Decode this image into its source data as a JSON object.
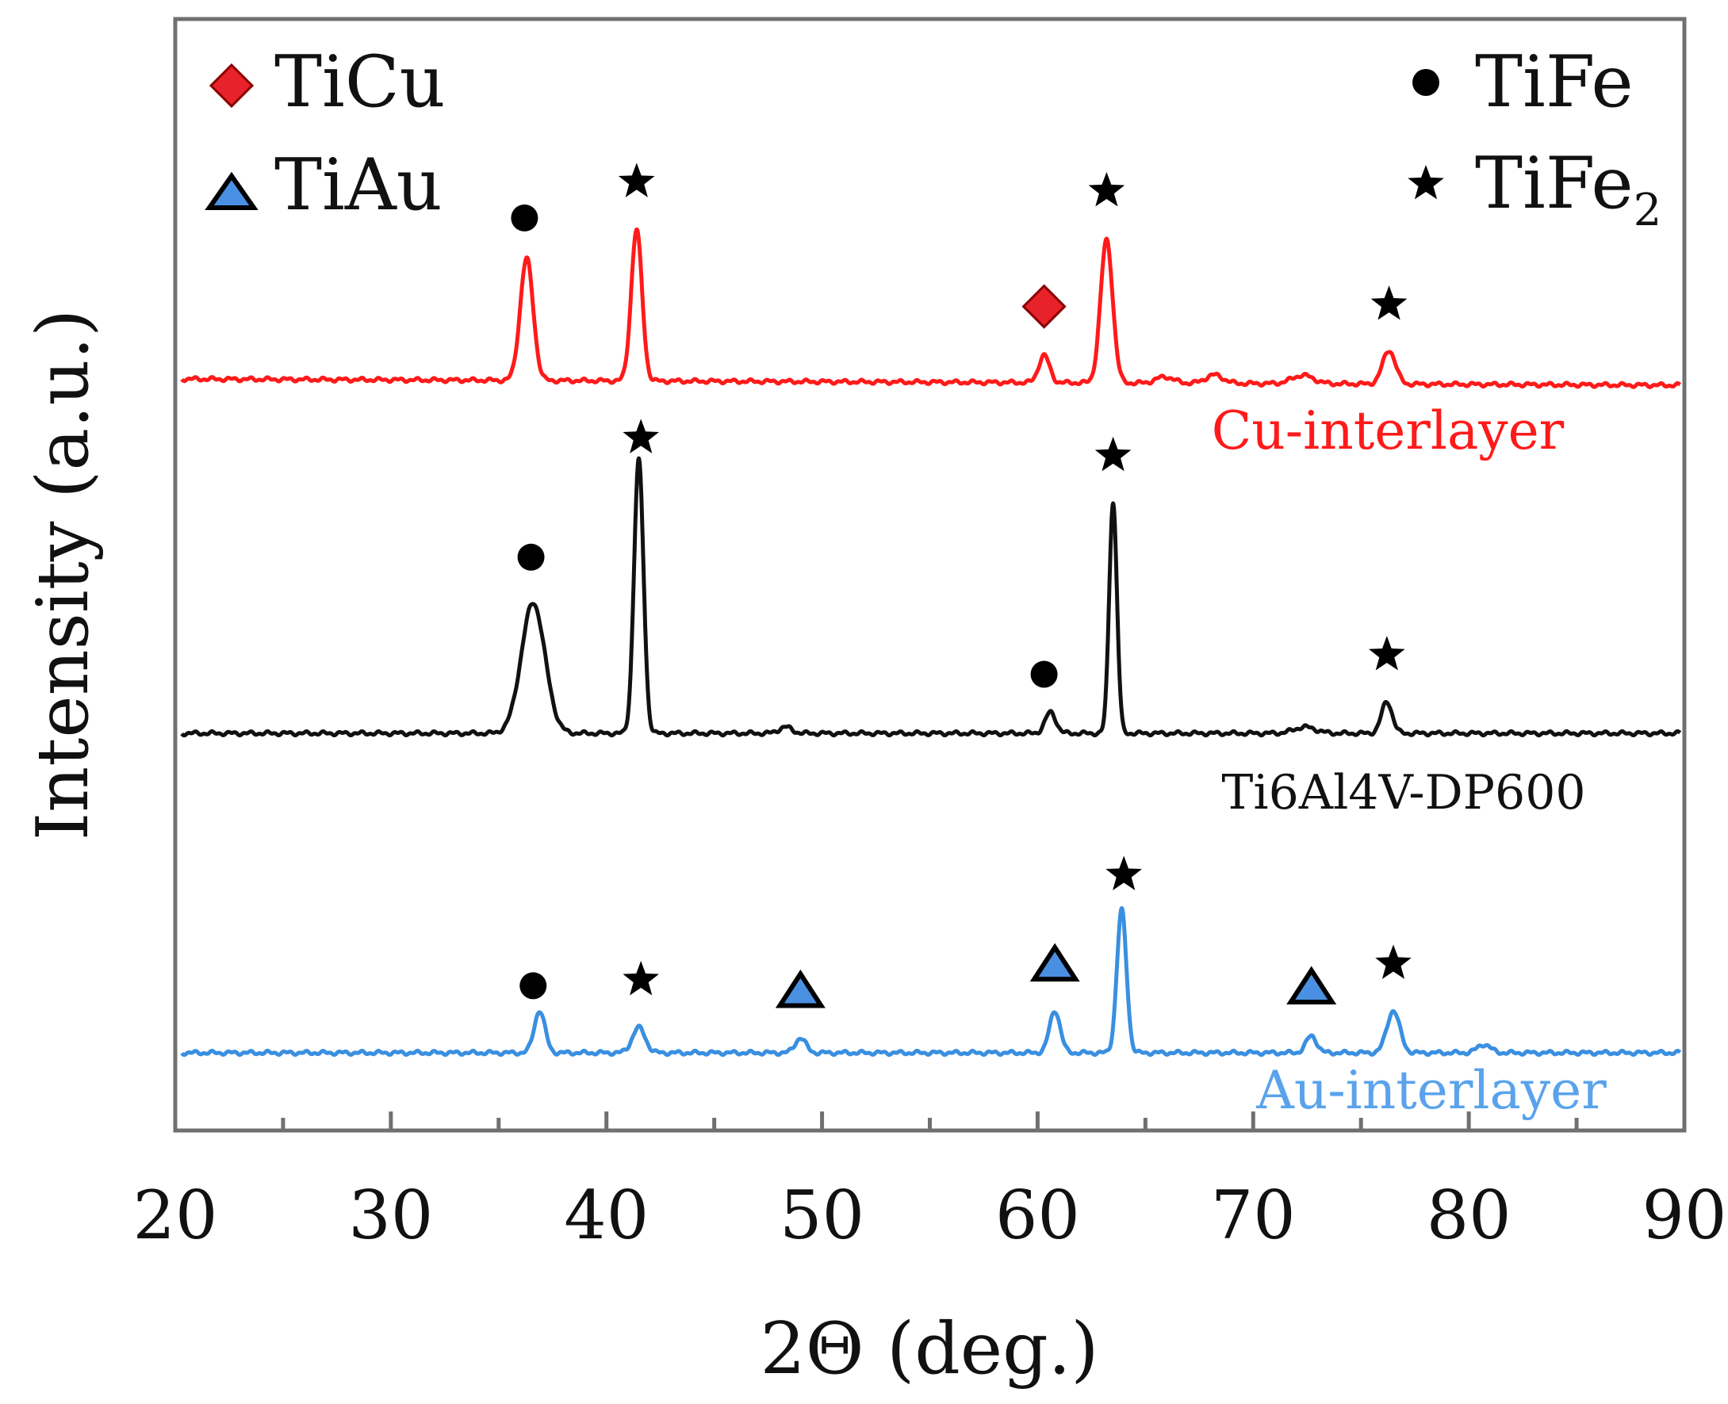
{
  "chart_data": {
    "type": "line",
    "title": "",
    "xlabel": "2Θ (deg.)",
    "ylabel": "Intensity (a.u.)",
    "xlim": [
      20,
      90
    ],
    "xticks": [
      "20",
      "30",
      "40",
      "50",
      "60",
      "70",
      "80",
      "90"
    ],
    "legend": {
      "placement": "top",
      "entries": [
        {
          "marker": "diamond",
          "label": "TiCu",
          "sub": ""
        },
        {
          "marker": "triangle",
          "label": "TiAu",
          "sub": ""
        },
        {
          "marker": "circle",
          "label": "TiFe",
          "sub": ""
        },
        {
          "marker": "star",
          "label": "TiFe",
          "sub": "2"
        }
      ]
    },
    "series": [
      {
        "name": "Cu-interlayer",
        "color": "#ff1a1a",
        "peaks": [
          {
            "x": 36.3,
            "h": 0.58,
            "w": 0.3
          },
          {
            "x": 41.4,
            "h": 0.72,
            "w": 0.25
          },
          {
            "x": 60.3,
            "h": 0.13,
            "w": 0.25
          },
          {
            "x": 63.2,
            "h": 0.68,
            "w": 0.28
          },
          {
            "x": 65.9,
            "h": 0.03,
            "w": 0.4
          },
          {
            "x": 68.2,
            "h": 0.04,
            "w": 0.4
          },
          {
            "x": 72.3,
            "h": 0.04,
            "w": 0.5
          },
          {
            "x": 76.3,
            "h": 0.16,
            "w": 0.3
          }
        ],
        "markers": [
          {
            "type": "circle",
            "x": 36.2
          },
          {
            "type": "star",
            "x": 41.4
          },
          {
            "type": "diamond",
            "x": 60.3
          },
          {
            "type": "star",
            "x": 63.2
          },
          {
            "type": "star",
            "x": 76.3
          }
        ]
      },
      {
        "name": "Ti6Al4V-DP600",
        "color": "#111111",
        "peaks": [
          {
            "x": 36.6,
            "h": 0.62,
            "w": 0.55
          },
          {
            "x": 41.5,
            "h": 1.3,
            "w": 0.22
          },
          {
            "x": 48.3,
            "h": 0.03,
            "w": 0.3
          },
          {
            "x": 60.6,
            "h": 0.1,
            "w": 0.25
          },
          {
            "x": 63.5,
            "h": 1.1,
            "w": 0.18
          },
          {
            "x": 72.4,
            "h": 0.03,
            "w": 0.5
          },
          {
            "x": 76.2,
            "h": 0.15,
            "w": 0.25
          }
        ],
        "markers": [
          {
            "type": "circle",
            "x": 36.5
          },
          {
            "type": "star",
            "x": 41.6
          },
          {
            "type": "circle",
            "x": 60.3
          },
          {
            "type": "star",
            "x": 63.5
          },
          {
            "type": "star",
            "x": 76.2
          }
        ]
      },
      {
        "name": "Au-interlayer",
        "color": "#3a8fe0",
        "peaks": [
          {
            "x": 36.9,
            "h": 0.2,
            "w": 0.25
          },
          {
            "x": 41.5,
            "h": 0.12,
            "w": 0.3
          },
          {
            "x": 49.0,
            "h": 0.07,
            "w": 0.25
          },
          {
            "x": 60.8,
            "h": 0.2,
            "w": 0.25
          },
          {
            "x": 63.9,
            "h": 0.68,
            "w": 0.22
          },
          {
            "x": 72.7,
            "h": 0.08,
            "w": 0.25
          },
          {
            "x": 76.5,
            "h": 0.2,
            "w": 0.3
          },
          {
            "x": 80.7,
            "h": 0.04,
            "w": 0.3
          }
        ],
        "markers": [
          {
            "type": "circle",
            "x": 36.6
          },
          {
            "type": "star",
            "x": 41.6
          },
          {
            "type": "triangle",
            "x": 49.0
          },
          {
            "type": "triangle",
            "x": 60.8
          },
          {
            "type": "star",
            "x": 64.0
          },
          {
            "type": "triangle",
            "x": 72.7
          },
          {
            "type": "star",
            "x": 76.5
          }
        ]
      }
    ]
  }
}
